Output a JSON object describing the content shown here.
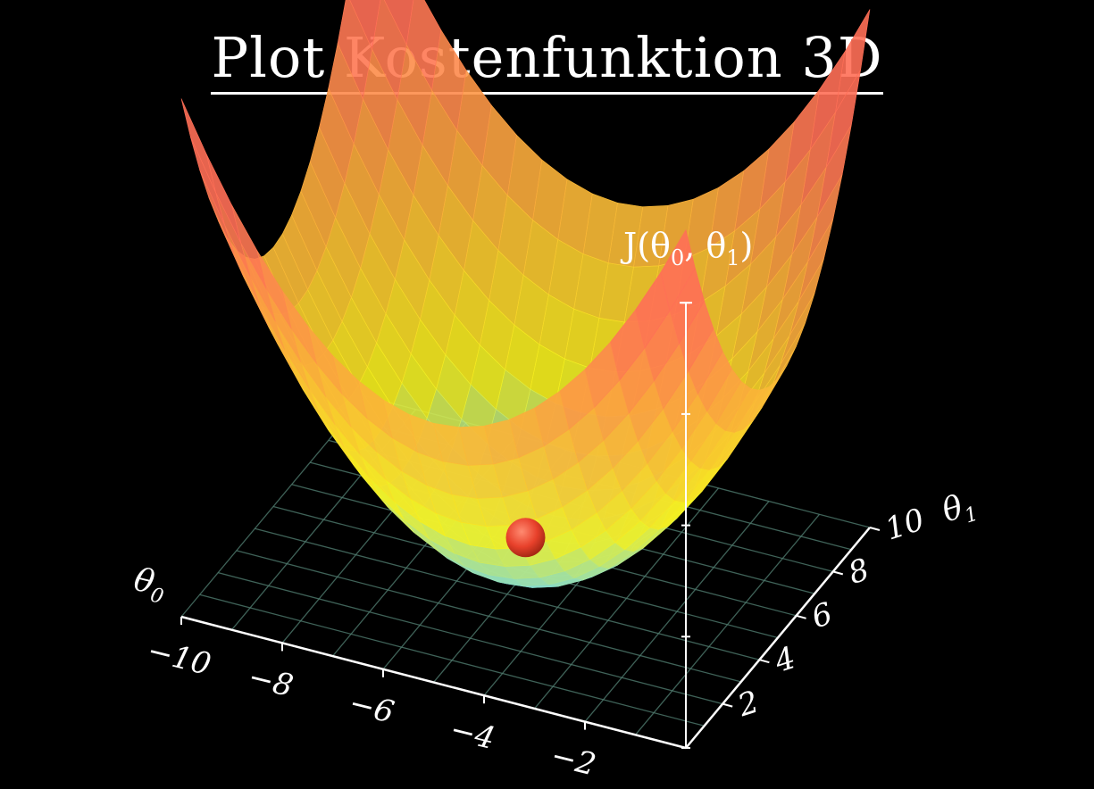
{
  "title": "Plot Kostenfunktion 3D",
  "colors": {
    "background": "#000000",
    "grid": "#4f7a6e",
    "axis": "#ffffff",
    "ball": "#e8412b",
    "surface_low": "#6fd6f0",
    "surface_mid": "#f7f21e",
    "surface_high": "#ff6f57"
  },
  "chart_data": {
    "type": "surface",
    "title": "Plot Kostenfunktion 3D",
    "x_axis": {
      "label": "θ0",
      "range": [
        -10,
        0
      ],
      "ticks": [
        -10,
        -8,
        -6,
        -4,
        -2
      ],
      "tick_labels": [
        "−10",
        "−8",
        "−6",
        "−4",
        "−2"
      ]
    },
    "y_axis": {
      "label": "θ1",
      "range": [
        0,
        10
      ],
      "ticks": [
        2,
        4,
        6,
        8,
        10
      ],
      "tick_labels": [
        "2",
        "4",
        "6",
        "8",
        "10"
      ]
    },
    "z_axis": {
      "label": "J(θ0, θ1)"
    },
    "surface": "convex bowl, minimum near θ0 = −5, θ1 = 5",
    "marker": {
      "theta0": -5,
      "theta1": 5,
      "color": "#e8412b"
    },
    "grid": true
  }
}
